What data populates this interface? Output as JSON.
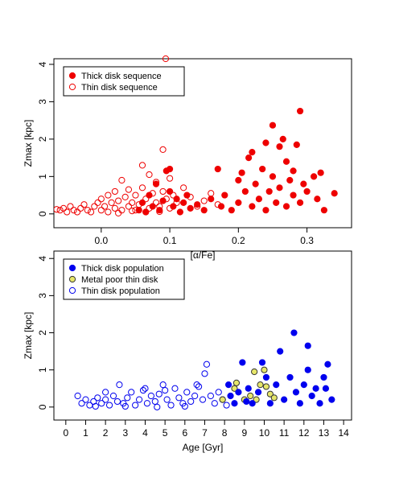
{
  "chart_data": [
    {
      "type": "scatter",
      "xlabel": "[α/Fe]",
      "ylabel": "Zmax [kpc]",
      "xlim": [
        -0.069,
        0.365
      ],
      "ylim": [
        -0.37,
        4.15
      ],
      "xticks": [
        {
          "value": 0,
          "label": "0.0"
        },
        0.1,
        0.2,
        0.3
      ],
      "yticks": [
        0,
        1,
        2,
        3,
        4
      ],
      "legend": "top-left",
      "series": [
        {
          "name": "Thick disk sequence",
          "color": "#ee0000",
          "fill": "#ee0000",
          "x": [
            0.055,
            0.06,
            0.065,
            0.07,
            0.075,
            0.08,
            0.085,
            0.09,
            0.095,
            0.1,
            0.1,
            0.105,
            0.11,
            0.115,
            0.12,
            0.125,
            0.13,
            0.14,
            0.15,
            0.16,
            0.17,
            0.175,
            0.18,
            0.19,
            0.2,
            0.2,
            0.205,
            0.21,
            0.215,
            0.22,
            0.22,
            0.225,
            0.23,
            0.235,
            0.24,
            0.24,
            0.245,
            0.25,
            0.25,
            0.255,
            0.26,
            0.26,
            0.265,
            0.27,
            0.27,
            0.275,
            0.28,
            0.28,
            0.285,
            0.29,
            0.29,
            0.295,
            0.3,
            0.31,
            0.315,
            0.32,
            0.325,
            0.34
          ],
          "values": [
            0.1,
            0.3,
            0.05,
            0.5,
            0.2,
            0.8,
            0.1,
            0.35,
            1.15,
            0.6,
            1.2,
            0.2,
            0.4,
            0.05,
            0.3,
            0.5,
            0.15,
            0.25,
            0.1,
            0.4,
            1.2,
            0.2,
            0.5,
            0.1,
            0.3,
            0.9,
            1.1,
            0.6,
            1.5,
            0.2,
            1.65,
            0.8,
            0.4,
            1.2,
            0.1,
            1.9,
            0.6,
            2.37,
            1.0,
            0.3,
            1.8,
            0.7,
            2.0,
            0.2,
            1.4,
            0.9,
            1.15,
            0.5,
            1.85,
            2.75,
            0.3,
            0.8,
            0.6,
            1.0,
            0.4,
            1.1,
            0.1,
            0.55
          ]
        },
        {
          "name": "Thin disk sequence",
          "color": "#ee0000",
          "fill": "none",
          "x": [
            -0.06,
            -0.055,
            -0.05,
            -0.045,
            -0.04,
            -0.035,
            -0.03,
            -0.025,
            -0.02,
            -0.015,
            -0.01,
            -0.005,
            0.0,
            0.0,
            0.005,
            0.01,
            0.01,
            0.015,
            0.02,
            0.02,
            0.025,
            0.03,
            0.03,
            0.035,
            0.04,
            0.04,
            0.045,
            0.05,
            0.05,
            0.055,
            0.06,
            0.06,
            0.065,
            0.07,
            0.07,
            0.075,
            0.08,
            0.08,
            0.085,
            0.09,
            0.09,
            0.094,
            0.095,
            0.1,
            0.1,
            0.105,
            0.11,
            0.12,
            0.13,
            0.14,
            0.15,
            0.16,
            0.17,
            -0.065,
            0.025,
            0.045,
            0.065,
            0.085
          ],
          "values": [
            0.1,
            0.15,
            0.05,
            0.2,
            0.1,
            0.05,
            0.15,
            0.25,
            0.1,
            0.05,
            0.2,
            0.3,
            0.1,
            0.4,
            0.2,
            0.05,
            0.5,
            0.3,
            0.15,
            0.6,
            0.35,
            0.1,
            0.9,
            0.45,
            0.2,
            0.65,
            0.3,
            0.1,
            0.5,
            0.25,
            0.7,
            1.3,
            0.4,
            0.15,
            1.05,
            0.55,
            0.3,
            0.85,
            0.2,
            0.6,
            1.72,
            4.15,
            0.4,
            0.15,
            0.95,
            0.5,
            0.3,
            0.7,
            0.45,
            0.2,
            0.35,
            0.55,
            0.25,
            0.12,
            0.02,
            0.08,
            0.05,
            0.06
          ]
        }
      ]
    },
    {
      "type": "scatter",
      "xlabel": "Age [Gyr]",
      "ylabel": "Zmax [kpc]",
      "xlim": [
        -0.6,
        14.4
      ],
      "ylim": [
        -0.35,
        4.2
      ],
      "xticks": [
        0,
        1,
        2,
        3,
        4,
        5,
        6,
        7,
        8,
        9,
        10,
        11,
        12,
        13,
        14
      ],
      "yticks": [
        0,
        1,
        2,
        3,
        4
      ],
      "legend": "top-left",
      "series": [
        {
          "name": "Thick disk population",
          "color": "#0000ee",
          "fill": "#0000ee",
          "x": [
            8.2,
            8.3,
            8.5,
            8.7,
            8.9,
            9.1,
            9.2,
            9.4,
            9.7,
            9.9,
            10.1,
            10.3,
            10.6,
            10.8,
            11.0,
            11.3,
            11.5,
            11.6,
            11.8,
            12.0,
            12.2,
            12.2,
            12.4,
            12.6,
            12.8,
            13.0,
            13.2,
            13.4,
            13.1
          ],
          "values": [
            0.6,
            0.3,
            0.1,
            0.4,
            1.2,
            0.15,
            0.5,
            0.1,
            0.4,
            1.2,
            0.8,
            0.1,
            0.6,
            1.5,
            0.2,
            0.8,
            2.0,
            0.4,
            0.1,
            0.6,
            1.65,
            1.0,
            0.3,
            0.5,
            0.1,
            0.8,
            1.15,
            0.2,
            0.5
          ]
        },
        {
          "name": "Metal poor thin disk",
          "color": "#333333",
          "fill": "#e6e66a",
          "x": [
            7.9,
            8.5,
            8.6,
            9.0,
            9.3,
            9.5,
            9.6,
            9.8,
            10.0,
            10.1,
            10.3,
            10.5
          ],
          "values": [
            0.2,
            0.5,
            0.65,
            0.2,
            0.3,
            0.95,
            0.2,
            0.6,
            1.0,
            0.55,
            0.35,
            0.25
          ]
        },
        {
          "name": "Thin disk population",
          "color": "#0000ee",
          "fill": "none",
          "x": [
            0.6,
            0.8,
            1.0,
            1.2,
            1.4,
            1.6,
            1.8,
            2.0,
            2.2,
            2.4,
            2.6,
            2.7,
            2.9,
            3.1,
            3.3,
            3.5,
            3.7,
            3.9,
            4.1,
            4.3,
            4.5,
            4.7,
            4.9,
            5.1,
            5.3,
            5.5,
            5.7,
            5.9,
            6.1,
            6.3,
            6.5,
            6.7,
            6.9,
            7.0,
            7.1,
            7.3,
            7.5,
            7.7,
            7.9,
            8.1,
            1.5,
            3.0,
            4.6,
            6.0,
            5.0,
            2.0,
            4.0,
            6.6
          ],
          "values": [
            0.3,
            0.1,
            0.2,
            0.05,
            0.15,
            0.25,
            0.1,
            0.2,
            0.05,
            0.3,
            0.15,
            0.6,
            0.1,
            0.25,
            0.4,
            0.05,
            0.2,
            0.45,
            0.1,
            0.3,
            0.15,
            0.35,
            0.6,
            0.2,
            0.05,
            0.5,
            0.25,
            0.1,
            0.4,
            0.15,
            0.3,
            0.55,
            0.2,
            0.9,
            1.15,
            0.3,
            0.1,
            0.4,
            0.2,
            0.05,
            0.02,
            0.02,
            0.0,
            0.02,
            0.45,
            0.4,
            0.5,
            0.6
          ]
        }
      ]
    }
  ]
}
